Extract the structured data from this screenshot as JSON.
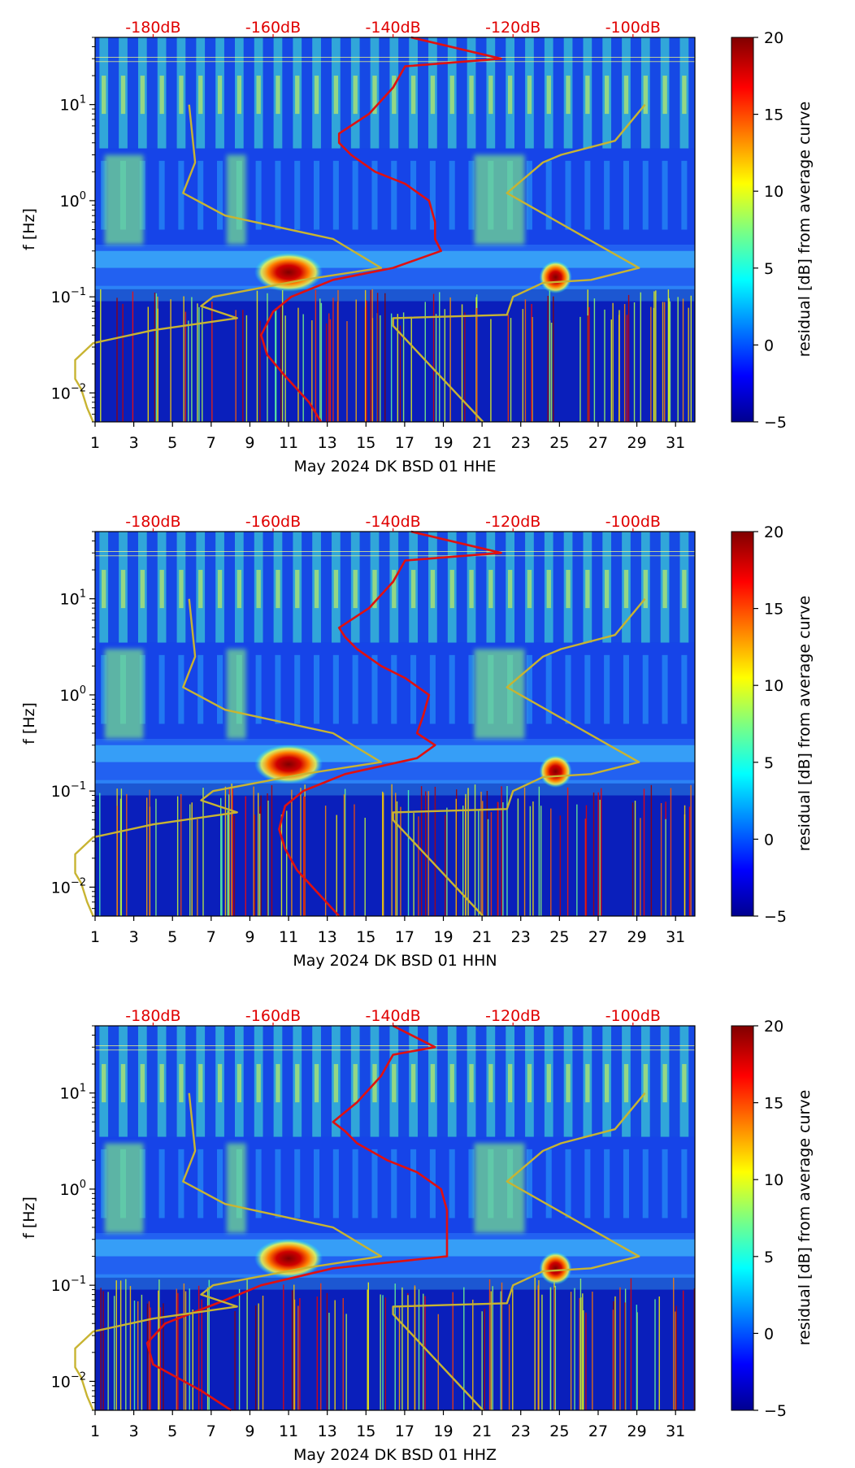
{
  "chart_data": [
    {
      "type": "heatmap",
      "component": "HHE",
      "title": "",
      "xlabel": "May 2024 DK BSD 01 HHE",
      "ylabel": "f [Hz]",
      "x_ticks": [
        "1",
        "3",
        "5",
        "7",
        "9",
        "11",
        "13",
        "15",
        "17",
        "19",
        "21",
        "23",
        "25",
        "27",
        "29",
        "31"
      ],
      "y_ticks": [
        {
          "base": "10",
          "exp": "1",
          "value": 10
        },
        {
          "base": "10",
          "exp": "0",
          "value": 1
        },
        {
          "base": "10",
          "exp": "−1",
          "value": 0.1
        },
        {
          "base": "10",
          "exp": "−2",
          "value": 0.01
        }
      ],
      "xlim": [
        1,
        32
      ],
      "ylim": [
        0.005,
        50
      ],
      "db_axis_ticks": [
        "-180dB",
        "-160dB",
        "-140dB",
        "-120dB",
        "-100dB"
      ],
      "db_axis_values": [
        -180,
        -160,
        -140,
        -120,
        -100
      ],
      "colorbar": {
        "label": "residual [dB] from average curve",
        "ticks": [
          "20",
          "15",
          "10",
          "5",
          "0",
          "−5"
        ],
        "range": [
          -5,
          20
        ],
        "colormap": "jet"
      },
      "hot_spots": [
        {
          "day": 11,
          "freq_hz": 0.18
        },
        {
          "day": 24.8,
          "freq_hz": 0.16
        }
      ],
      "series": [
        {
          "name": "average PSD curve",
          "color": "#e01010",
          "units": "dB",
          "points": [
            [
              -137,
              50
            ],
            [
              -122,
              30
            ],
            [
              -138,
              25
            ],
            [
              -140,
              15
            ],
            [
              -144,
              8
            ],
            [
              -149,
              5
            ],
            [
              -149,
              4
            ],
            [
              -147,
              3
            ],
            [
              -143,
              2
            ],
            [
              -138,
              1.5
            ],
            [
              -134,
              1
            ],
            [
              -133,
              0.6
            ],
            [
              -133,
              0.4
            ],
            [
              -132,
              0.3
            ],
            [
              -140,
              0.2
            ],
            [
              -150,
              0.15
            ],
            [
              -157,
              0.1
            ],
            [
              -160,
              0.07
            ],
            [
              -162,
              0.04
            ],
            [
              -161,
              0.025
            ],
            [
              -158,
              0.015
            ],
            [
              -154,
              0.008
            ],
            [
              -152,
              0.005
            ]
          ]
        },
        {
          "name": "noise model",
          "color": "#c8b432",
          "points": [
            [
              -174,
              10
            ],
            [
              -173,
              2.5
            ],
            [
              -175,
              1.2
            ],
            [
              -168,
              0.7
            ],
            [
              -150,
              0.4
            ],
            [
              -142,
              0.2
            ],
            [
              -155,
              0.15
            ],
            [
              -170,
              0.1
            ],
            [
              -172,
              0.08
            ],
            [
              -166,
              0.06
            ],
            [
              -180,
              0.045
            ],
            [
              -190,
              0.033
            ],
            [
              -193,
              0.022
            ],
            [
              -193,
              0.014
            ],
            [
              -192,
              0.011
            ],
            [
              -191,
              0.007
            ],
            [
              -190,
              0.005
            ]
          ]
        },
        {
          "name": "noise model",
          "color": "#c8b432",
          "points": [
            [
              -98,
              10
            ],
            [
              -103,
              4.2
            ],
            [
              -112,
              3
            ],
            [
              -115,
              2.5
            ],
            [
              -121,
              1.2
            ],
            [
              -99,
              0.2
            ],
            [
              -107,
              0.15
            ],
            [
              -115,
              0.14
            ],
            [
              -120,
              0.1
            ],
            [
              -121,
              0.065
            ],
            [
              -140,
              0.06
            ],
            [
              -140,
              0.05
            ],
            [
              -125,
              0.005
            ]
          ]
        }
      ]
    },
    {
      "type": "heatmap",
      "component": "HHN",
      "title": "",
      "xlabel": "May 2024 DK BSD 01 HHN",
      "ylabel": "f [Hz]",
      "x_ticks": [
        "1",
        "3",
        "5",
        "7",
        "9",
        "11",
        "13",
        "15",
        "17",
        "19",
        "21",
        "23",
        "25",
        "27",
        "29",
        "31"
      ],
      "y_ticks": [
        {
          "base": "10",
          "exp": "1",
          "value": 10
        },
        {
          "base": "10",
          "exp": "0",
          "value": 1
        },
        {
          "base": "10",
          "exp": "−1",
          "value": 0.1
        },
        {
          "base": "10",
          "exp": "−2",
          "value": 0.01
        }
      ],
      "xlim": [
        1,
        32
      ],
      "ylim": [
        0.005,
        50
      ],
      "db_axis_ticks": [
        "-180dB",
        "-160dB",
        "-140dB",
        "-120dB",
        "-100dB"
      ],
      "db_axis_values": [
        -180,
        -160,
        -140,
        -120,
        -100
      ],
      "colorbar": {
        "label": "residual [dB] from average curve",
        "ticks": [
          "20",
          "15",
          "10",
          "5",
          "0",
          "−5"
        ],
        "range": [
          -5,
          20
        ],
        "colormap": "jet"
      },
      "hot_spots": [
        {
          "day": 11,
          "freq_hz": 0.19
        },
        {
          "day": 24.8,
          "freq_hz": 0.16
        }
      ],
      "series": [
        {
          "name": "average PSD curve",
          "color": "#e01010",
          "units": "dB",
          "points": [
            [
              -137,
              50
            ],
            [
              -122,
              30
            ],
            [
              -138,
              25
            ],
            [
              -140,
              15
            ],
            [
              -144,
              8
            ],
            [
              -149,
              5
            ],
            [
              -148,
              4
            ],
            [
              -146,
              3
            ],
            [
              -142,
              2
            ],
            [
              -138,
              1.5
            ],
            [
              -134,
              1
            ],
            [
              -135,
              0.6
            ],
            [
              -136,
              0.4
            ],
            [
              -133,
              0.3
            ],
            [
              -136,
              0.22
            ],
            [
              -148,
              0.15
            ],
            [
              -155,
              0.1
            ],
            [
              -158,
              0.07
            ],
            [
              -159,
              0.04
            ],
            [
              -158,
              0.025
            ],
            [
              -156,
              0.015
            ],
            [
              -152,
              0.008
            ],
            [
              -149,
              0.005
            ]
          ]
        },
        {
          "name": "noise model",
          "color": "#c8b432",
          "points": [
            [
              -174,
              10
            ],
            [
              -173,
              2.5
            ],
            [
              -175,
              1.2
            ],
            [
              -168,
              0.7
            ],
            [
              -150,
              0.4
            ],
            [
              -142,
              0.2
            ],
            [
              -155,
              0.15
            ],
            [
              -170,
              0.1
            ],
            [
              -172,
              0.08
            ],
            [
              -166,
              0.06
            ],
            [
              -180,
              0.045
            ],
            [
              -190,
              0.033
            ],
            [
              -193,
              0.022
            ],
            [
              -193,
              0.014
            ],
            [
              -192,
              0.011
            ],
            [
              -191,
              0.007
            ],
            [
              -190,
              0.005
            ]
          ]
        },
        {
          "name": "noise model",
          "color": "#c8b432",
          "points": [
            [
              -98,
              10
            ],
            [
              -103,
              4.2
            ],
            [
              -112,
              3
            ],
            [
              -115,
              2.5
            ],
            [
              -121,
              1.2
            ],
            [
              -99,
              0.2
            ],
            [
              -107,
              0.15
            ],
            [
              -115,
              0.14
            ],
            [
              -120,
              0.1
            ],
            [
              -121,
              0.065
            ],
            [
              -140,
              0.06
            ],
            [
              -140,
              0.05
            ],
            [
              -125,
              0.005
            ]
          ]
        }
      ]
    },
    {
      "type": "heatmap",
      "component": "HHZ",
      "title": "",
      "xlabel": "May 2024 DK BSD 01 HHZ",
      "ylabel": "f [Hz]",
      "x_ticks": [
        "1",
        "3",
        "5",
        "7",
        "9",
        "11",
        "13",
        "15",
        "17",
        "19",
        "21",
        "23",
        "25",
        "27",
        "29",
        "31"
      ],
      "y_ticks": [
        {
          "base": "10",
          "exp": "1",
          "value": 10
        },
        {
          "base": "10",
          "exp": "0",
          "value": 1
        },
        {
          "base": "10",
          "exp": "−1",
          "value": 0.1
        },
        {
          "base": "10",
          "exp": "−2",
          "value": 0.01
        }
      ],
      "xlim": [
        1,
        32
      ],
      "ylim": [
        0.005,
        50
      ],
      "db_axis_ticks": [
        "-180dB",
        "-160dB",
        "-140dB",
        "-120dB",
        "-100dB"
      ],
      "db_axis_values": [
        -180,
        -160,
        -140,
        -120,
        -100
      ],
      "colorbar": {
        "label": "residual [dB] from average curve",
        "ticks": [
          "20",
          "15",
          "10",
          "5",
          "0",
          "−5"
        ],
        "range": [
          -5,
          20
        ],
        "colormap": "jet"
      },
      "hot_spots": [
        {
          "day": 11,
          "freq_hz": 0.19
        },
        {
          "day": 24.8,
          "freq_hz": 0.15
        }
      ],
      "series": [
        {
          "name": "average PSD curve",
          "color": "#e01010",
          "units": "dB",
          "points": [
            [
              -140,
              50
            ],
            [
              -133,
              30
            ],
            [
              -140,
              25
            ],
            [
              -142,
              15
            ],
            [
              -146,
              8
            ],
            [
              -150,
              5
            ],
            [
              -148,
              4
            ],
            [
              -146,
              3
            ],
            [
              -141,
              2
            ],
            [
              -136,
              1.5
            ],
            [
              -132,
              1
            ],
            [
              -131,
              0.6
            ],
            [
              -131,
              0.4
            ],
            [
              -131,
              0.3
            ],
            [
              -131,
              0.2
            ],
            [
              -150,
              0.15
            ],
            [
              -162,
              0.1
            ],
            [
              -168,
              0.07
            ],
            [
              -178,
              0.04
            ],
            [
              -181,
              0.025
            ],
            [
              -180,
              0.015
            ],
            [
              -172,
              0.008
            ],
            [
              -167,
              0.005
            ]
          ]
        },
        {
          "name": "noise model",
          "color": "#c8b432",
          "points": [
            [
              -174,
              10
            ],
            [
              -173,
              2.5
            ],
            [
              -175,
              1.2
            ],
            [
              -168,
              0.7
            ],
            [
              -150,
              0.4
            ],
            [
              -142,
              0.2
            ],
            [
              -155,
              0.15
            ],
            [
              -170,
              0.1
            ],
            [
              -172,
              0.08
            ],
            [
              -166,
              0.06
            ],
            [
              -180,
              0.045
            ],
            [
              -190,
              0.033
            ],
            [
              -193,
              0.022
            ],
            [
              -193,
              0.014
            ],
            [
              -192,
              0.011
            ],
            [
              -191,
              0.007
            ],
            [
              -190,
              0.005
            ]
          ]
        },
        {
          "name": "noise model",
          "color": "#c8b432",
          "points": [
            [
              -98,
              10
            ],
            [
              -103,
              4.2
            ],
            [
              -112,
              3
            ],
            [
              -115,
              2.5
            ],
            [
              -121,
              1.2
            ],
            [
              -99,
              0.2
            ],
            [
              -107,
              0.15
            ],
            [
              -115,
              0.14
            ],
            [
              -120,
              0.1
            ],
            [
              -121,
              0.065
            ],
            [
              -140,
              0.06
            ],
            [
              -140,
              0.05
            ],
            [
              -125,
              0.005
            ]
          ]
        }
      ]
    }
  ]
}
